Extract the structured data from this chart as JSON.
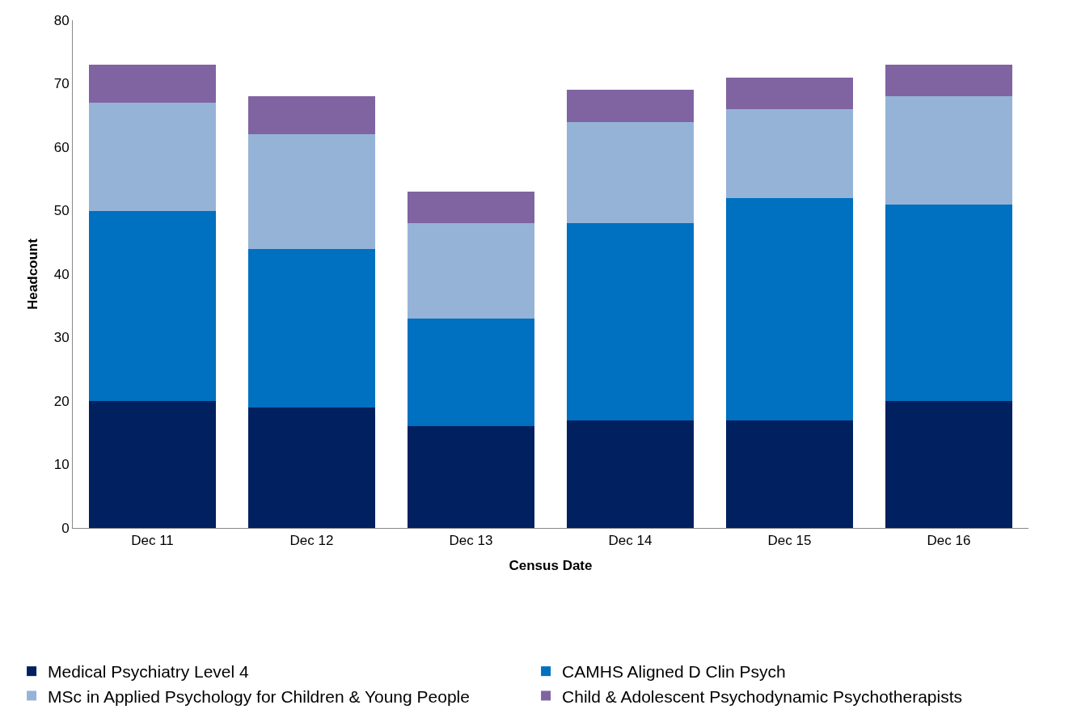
{
  "chart_data": {
    "type": "bar",
    "stacked": true,
    "xlabel": "Census Date",
    "ylabel": "Headcount",
    "categories": [
      "Dec 11",
      "Dec 12",
      "Dec 13",
      "Dec 14",
      "Dec 15",
      "Dec 16"
    ],
    "series": [
      {
        "name": "Medical Psychiatry Level 4",
        "color": "#002060",
        "values": [
          20,
          19,
          16,
          17,
          17,
          20
        ]
      },
      {
        "name": "CAMHS Aligned D Clin Psych",
        "color": "#0070c0",
        "values": [
          30,
          25,
          17,
          31,
          35,
          31
        ]
      },
      {
        "name": "MSc in Applied Psychology for Children & Young People",
        "color": "#95b3d7",
        "values": [
          17,
          18,
          15,
          16,
          14,
          17
        ]
      },
      {
        "name": "Child & Adolescent Psychodynamic Psychotherapists",
        "color": "#8064a2",
        "values": [
          6,
          6,
          5,
          5,
          5,
          5
        ]
      }
    ],
    "ylim": [
      0,
      80
    ],
    "yticks": [
      0,
      10,
      20,
      30,
      40,
      50,
      60,
      70,
      80
    ],
    "grid": false,
    "legend": "bottom"
  }
}
